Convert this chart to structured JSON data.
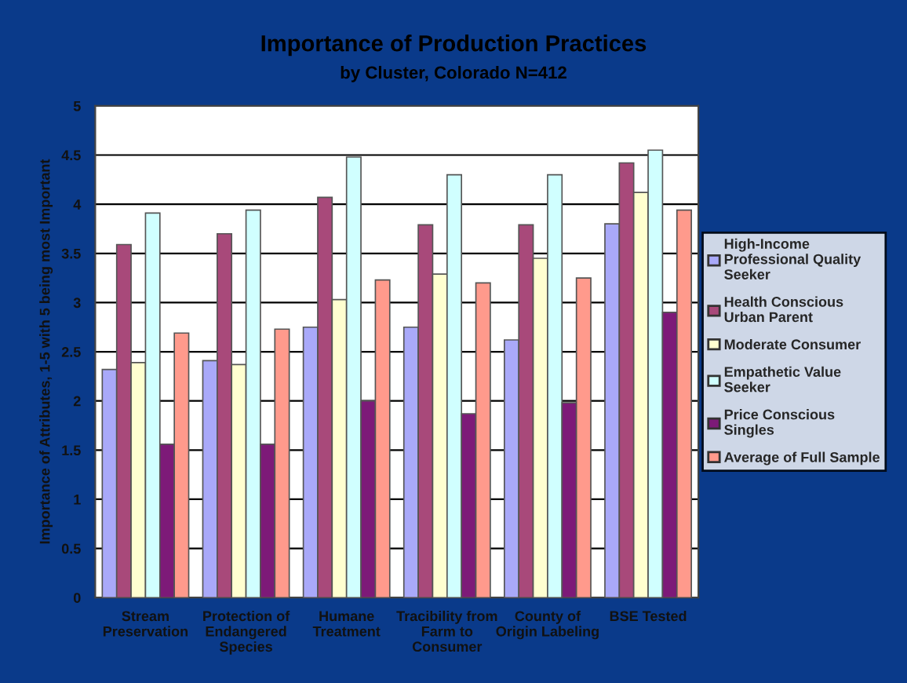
{
  "chart_data": {
    "type": "bar",
    "title": "Importance of Production Practices",
    "subtitle": "by Cluster, Colorado N=412",
    "ylabel": "Importance of Attributes, 1-5 with 5 being most Important",
    "categories": [
      "Stream\nPreservation",
      "Protection of\nEndangered\nSpecies",
      "Humane\nTreatment",
      "Tracibility from\nFarm to\nConsumer",
      "County of\nOrigin Labeling",
      "BSE Tested"
    ],
    "series": [
      {
        "name": "High-Income\nProfessional Quality\nSeeker",
        "color": "#a9a9f9",
        "values": [
          2.32,
          2.41,
          2.75,
          2.75,
          2.62,
          3.8
        ]
      },
      {
        "name": "Health Conscious\nUrban Parent",
        "color": "#a8497a",
        "values": [
          3.59,
          3.7,
          4.07,
          3.79,
          3.79,
          4.42
        ]
      },
      {
        "name": "Moderate Consumer",
        "color": "#ffffd0",
        "values": [
          2.39,
          2.37,
          3.03,
          3.29,
          3.45,
          4.12
        ]
      },
      {
        "name": "Empathetic Value\nSeeker",
        "color": "#d0ffff",
        "values": [
          3.91,
          3.94,
          4.48,
          4.3,
          4.3,
          4.55
        ]
      },
      {
        "name": "Price Conscious\nSingles",
        "color": "#7d1a78",
        "values": [
          1.56,
          1.56,
          2.0,
          1.87,
          1.98,
          2.9
        ]
      },
      {
        "name": "Average of Full Sample",
        "color": "#ff9a8c",
        "values": [
          2.69,
          2.73,
          3.23,
          3.2,
          3.25,
          3.94
        ]
      }
    ],
    "ylim": [
      0,
      5
    ],
    "yticks": [
      0,
      0.5,
      1,
      1.5,
      2,
      2.5,
      3,
      3.5,
      4,
      4.5,
      5
    ],
    "grid": "y",
    "legend": "right"
  }
}
